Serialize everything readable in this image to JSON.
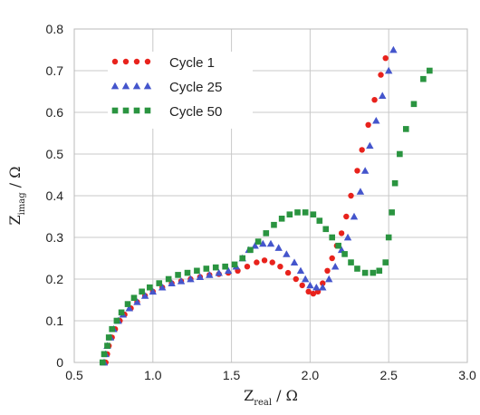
{
  "chart_data": {
    "type": "scatter",
    "title": "",
    "xlabel": {
      "main": "Z",
      "sub": "real",
      "unit": " / Ω"
    },
    "ylabel": {
      "main": "Z",
      "sub": "imag",
      "unit": " / Ω"
    },
    "xlim": [
      0.5,
      3.0
    ],
    "ylim": [
      0,
      0.8
    ],
    "x_ticks": [
      "0.5",
      "1.0",
      "1.5",
      "2.0",
      "2.5",
      "3.0"
    ],
    "y_ticks": [
      "0",
      "0.1",
      "0.2",
      "0.3",
      "0.4",
      "0.5",
      "0.6",
      "0.7",
      "0.8"
    ],
    "grid": true,
    "legend_position": "top-left",
    "series": [
      {
        "name": "Cycle 1",
        "marker": "circle",
        "color": "#e8221c",
        "points": [
          [
            0.7,
            0.0
          ],
          [
            0.71,
            0.02
          ],
          [
            0.72,
            0.04
          ],
          [
            0.74,
            0.06
          ],
          [
            0.76,
            0.08
          ],
          [
            0.79,
            0.1
          ],
          [
            0.82,
            0.115
          ],
          [
            0.86,
            0.13
          ],
          [
            0.9,
            0.145
          ],
          [
            0.95,
            0.16
          ],
          [
            1.0,
            0.17
          ],
          [
            1.06,
            0.18
          ],
          [
            1.12,
            0.19
          ],
          [
            1.18,
            0.195
          ],
          [
            1.24,
            0.2
          ],
          [
            1.3,
            0.205
          ],
          [
            1.36,
            0.21
          ],
          [
            1.42,
            0.212
          ],
          [
            1.48,
            0.215
          ],
          [
            1.54,
            0.22
          ],
          [
            1.6,
            0.23
          ],
          [
            1.66,
            0.24
          ],
          [
            1.71,
            0.245
          ],
          [
            1.76,
            0.24
          ],
          [
            1.81,
            0.23
          ],
          [
            1.86,
            0.215
          ],
          [
            1.91,
            0.2
          ],
          [
            1.95,
            0.185
          ],
          [
            1.99,
            0.17
          ],
          [
            2.02,
            0.165
          ],
          [
            2.05,
            0.17
          ],
          [
            2.08,
            0.19
          ],
          [
            2.11,
            0.22
          ],
          [
            2.14,
            0.25
          ],
          [
            2.17,
            0.28
          ],
          [
            2.2,
            0.31
          ],
          [
            2.23,
            0.35
          ],
          [
            2.26,
            0.4
          ],
          [
            2.3,
            0.46
          ],
          [
            2.33,
            0.51
          ],
          [
            2.37,
            0.57
          ],
          [
            2.41,
            0.63
          ],
          [
            2.45,
            0.69
          ],
          [
            2.48,
            0.73
          ]
        ]
      },
      {
        "name": "Cycle 25",
        "marker": "triangle",
        "color": "#4455cc",
        "points": [
          [
            0.69,
            0.0
          ],
          [
            0.7,
            0.02
          ],
          [
            0.71,
            0.04
          ],
          [
            0.73,
            0.06
          ],
          [
            0.75,
            0.08
          ],
          [
            0.78,
            0.1
          ],
          [
            0.81,
            0.115
          ],
          [
            0.85,
            0.13
          ],
          [
            0.9,
            0.145
          ],
          [
            0.95,
            0.16
          ],
          [
            1.0,
            0.17
          ],
          [
            1.06,
            0.18
          ],
          [
            1.12,
            0.19
          ],
          [
            1.18,
            0.195
          ],
          [
            1.24,
            0.2
          ],
          [
            1.3,
            0.205
          ],
          [
            1.36,
            0.21
          ],
          [
            1.42,
            0.215
          ],
          [
            1.48,
            0.22
          ],
          [
            1.53,
            0.23
          ],
          [
            1.57,
            0.25
          ],
          [
            1.61,
            0.27
          ],
          [
            1.65,
            0.28
          ],
          [
            1.7,
            0.285
          ],
          [
            1.75,
            0.285
          ],
          [
            1.8,
            0.275
          ],
          [
            1.85,
            0.26
          ],
          [
            1.9,
            0.24
          ],
          [
            1.94,
            0.22
          ],
          [
            1.97,
            0.2
          ],
          [
            2.0,
            0.185
          ],
          [
            2.04,
            0.18
          ],
          [
            2.08,
            0.18
          ],
          [
            2.12,
            0.2
          ],
          [
            2.16,
            0.23
          ],
          [
            2.2,
            0.27
          ],
          [
            2.24,
            0.3
          ],
          [
            2.28,
            0.35
          ],
          [
            2.32,
            0.41
          ],
          [
            2.35,
            0.46
          ],
          [
            2.38,
            0.52
          ],
          [
            2.42,
            0.58
          ],
          [
            2.46,
            0.64
          ],
          [
            2.5,
            0.7
          ],
          [
            2.53,
            0.75
          ]
        ]
      },
      {
        "name": "Cycle 50",
        "marker": "square",
        "color": "#2a9440",
        "points": [
          [
            0.68,
            0.0
          ],
          [
            0.69,
            0.02
          ],
          [
            0.71,
            0.04
          ],
          [
            0.72,
            0.06
          ],
          [
            0.74,
            0.08
          ],
          [
            0.77,
            0.1
          ],
          [
            0.8,
            0.12
          ],
          [
            0.84,
            0.14
          ],
          [
            0.88,
            0.155
          ],
          [
            0.93,
            0.17
          ],
          [
            0.98,
            0.18
          ],
          [
            1.04,
            0.19
          ],
          [
            1.1,
            0.2
          ],
          [
            1.16,
            0.21
          ],
          [
            1.22,
            0.215
          ],
          [
            1.28,
            0.22
          ],
          [
            1.34,
            0.225
          ],
          [
            1.4,
            0.228
          ],
          [
            1.46,
            0.23
          ],
          [
            1.52,
            0.235
          ],
          [
            1.57,
            0.25
          ],
          [
            1.62,
            0.27
          ],
          [
            1.67,
            0.29
          ],
          [
            1.72,
            0.31
          ],
          [
            1.77,
            0.33
          ],
          [
            1.82,
            0.345
          ],
          [
            1.87,
            0.355
          ],
          [
            1.92,
            0.36
          ],
          [
            1.97,
            0.36
          ],
          [
            2.02,
            0.355
          ],
          [
            2.06,
            0.34
          ],
          [
            2.1,
            0.32
          ],
          [
            2.14,
            0.3
          ],
          [
            2.18,
            0.28
          ],
          [
            2.22,
            0.26
          ],
          [
            2.26,
            0.24
          ],
          [
            2.3,
            0.225
          ],
          [
            2.35,
            0.215
          ],
          [
            2.4,
            0.215
          ],
          [
            2.44,
            0.22
          ],
          [
            2.48,
            0.24
          ],
          [
            2.5,
            0.3
          ],
          [
            2.52,
            0.36
          ],
          [
            2.54,
            0.43
          ],
          [
            2.57,
            0.5
          ],
          [
            2.61,
            0.56
          ],
          [
            2.66,
            0.62
          ],
          [
            2.72,
            0.68
          ],
          [
            2.76,
            0.7
          ]
        ]
      }
    ]
  }
}
